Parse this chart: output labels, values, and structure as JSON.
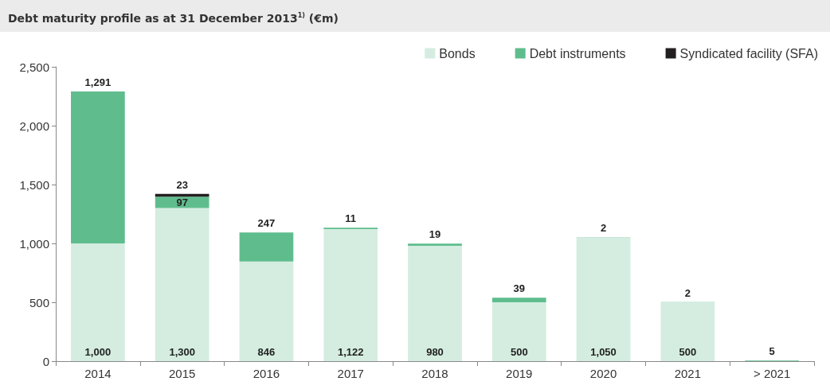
{
  "chart_data": {
    "type": "bar",
    "title": "Debt maturity profile as at 31 December 2013$^{1)}$ (€m)",
    "stacked": true,
    "legend": "top right",
    "grid": false,
    "categories": [
      "2014",
      "2015",
      "2016",
      "2017",
      "2018",
      "2019",
      "2020",
      "2021",
      "> 2021"
    ],
    "ylim": [
      0,
      2500
    ],
    "yticks": [
      0,
      500,
      {
        "value": 1000,
        "label": "1,000"
      },
      {
        "value": 1500,
        "label": "1,500"
      },
      {
        "value": 2000,
        "label": "2,000"
      },
      {
        "value": 2500,
        "label": "2,500"
      }
    ],
    "series": [
      {
        "name": "Bonds",
        "color": "#d4ede0",
        "values": [
          1000,
          1300,
          846,
          1122,
          980,
          500,
          1050,
          500,
          null
        ],
        "value_labels": [
          "1,000",
          "1,300",
          "846",
          "1,122",
          "980",
          "500",
          "1,050",
          "500",
          null
        ]
      },
      {
        "name": "Debt instruments",
        "color": "#5fbd8d",
        "values": [
          1291,
          97,
          247,
          11,
          19,
          39,
          2,
          2,
          5
        ],
        "value_labels": [
          "1,291",
          "97",
          "247",
          "11",
          "19",
          "39",
          "2",
          "2",
          "5"
        ]
      },
      {
        "name": "Syndicated facility (SFA)",
        "color": "#231f20",
        "values": [
          null,
          23,
          null,
          null,
          null,
          null,
          null,
          null,
          null
        ],
        "value_labels": [
          null,
          "23",
          null,
          null,
          null,
          null,
          null,
          null,
          null
        ]
      }
    ]
  }
}
